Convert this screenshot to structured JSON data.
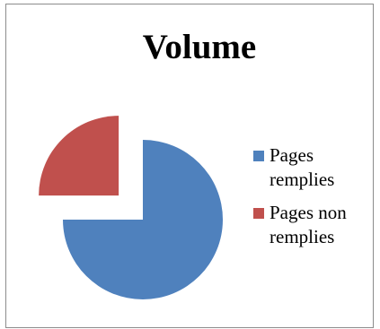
{
  "chart_data": {
    "type": "pie",
    "title": "Volume",
    "series": [
      {
        "name": "Pages remplies",
        "value": 75,
        "color": "#4f81bd"
      },
      {
        "name": "Pages non remplies",
        "value": 25,
        "color": "#c0504d"
      }
    ],
    "exploded": [
      "Pages non remplies"
    ],
    "legend_position": "right"
  }
}
